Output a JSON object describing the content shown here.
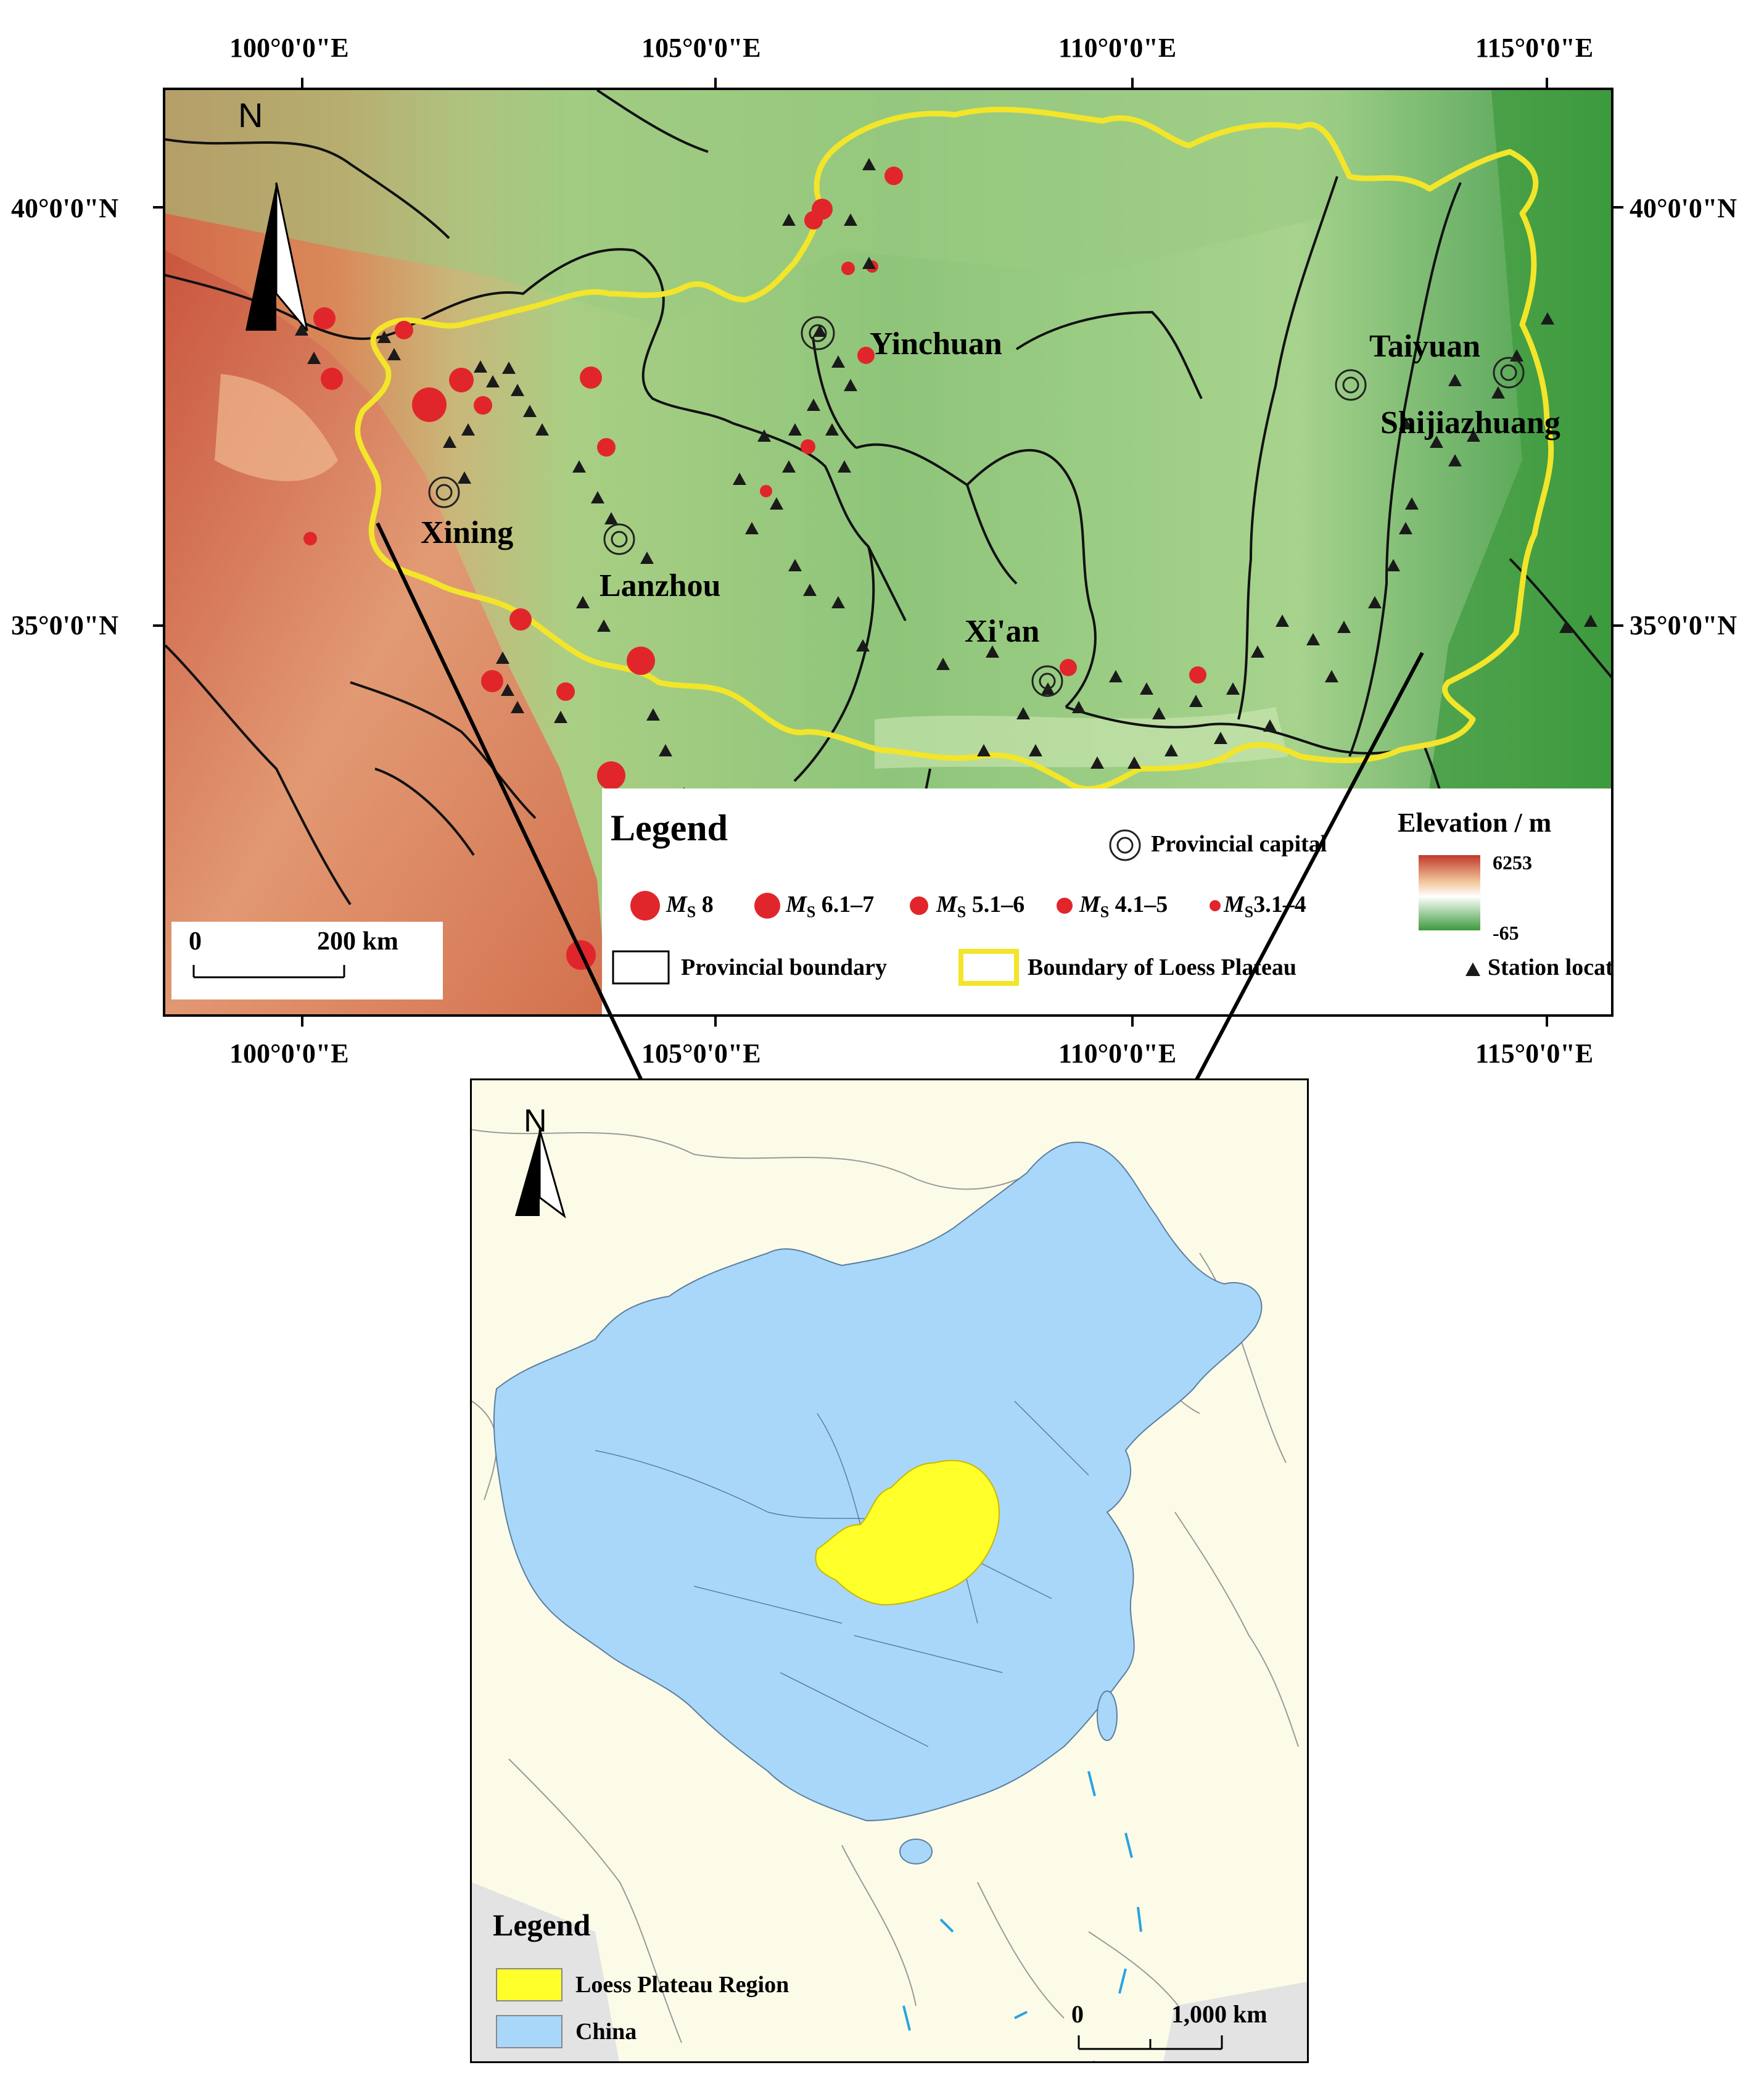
{
  "main_map": {
    "top_lon_labels": [
      "100°0'0\"E",
      "105°0'0\"E",
      "110°0'0\"E",
      "115°0'0\"E"
    ],
    "bottom_lon_labels": [
      "100°0'0\"E",
      "105°0'0\"E",
      "110°0'0\"E",
      "115°0'0\"E"
    ],
    "left_lat_labels": [
      "40°0'0\"N",
      "35°0'0\"N"
    ],
    "right_lat_labels": [
      "40°0'0\"N",
      "35°0'0\"N"
    ],
    "north_label": "N",
    "cities": [
      "Yinchuan",
      "Taiyuan",
      "Shijiazhuang",
      "Xining",
      "Lanzhou",
      "Xi'an"
    ],
    "scale_bar": {
      "start": "0",
      "end": "200 km"
    },
    "legend": {
      "title": "Legend",
      "provincial_capital": "Provincial capital",
      "elevation_title": "Elevation / m",
      "elevation_max": "6253",
      "elevation_min": "-65",
      "magnitude_symbol": "M",
      "magnitude_subscript": "S",
      "magnitudes": [
        "8",
        "6.1–7",
        "5.1–6",
        "4.1–5",
        "3.1–4"
      ],
      "provincial_boundary": "Provincial boundary",
      "loess_boundary": "Boundary of Loess Plateau",
      "station_location": "Station location"
    }
  },
  "inset_map": {
    "north_label": "N",
    "legend_title": "Legend",
    "legend_items": [
      "Loess Plateau Region",
      "China"
    ],
    "scale_bar": {
      "start": "0",
      "end": "1,000 km"
    }
  },
  "colors": {
    "earthquake": "#e1262b",
    "loess_boundary": "#f2e52a",
    "china_fill": "#a9d7fa",
    "loess_fill": "#ffff2a",
    "land_fill": "#fbfbe8",
    "high_elevation": "#c0392b",
    "low_elevation": "#3d9a3d"
  }
}
